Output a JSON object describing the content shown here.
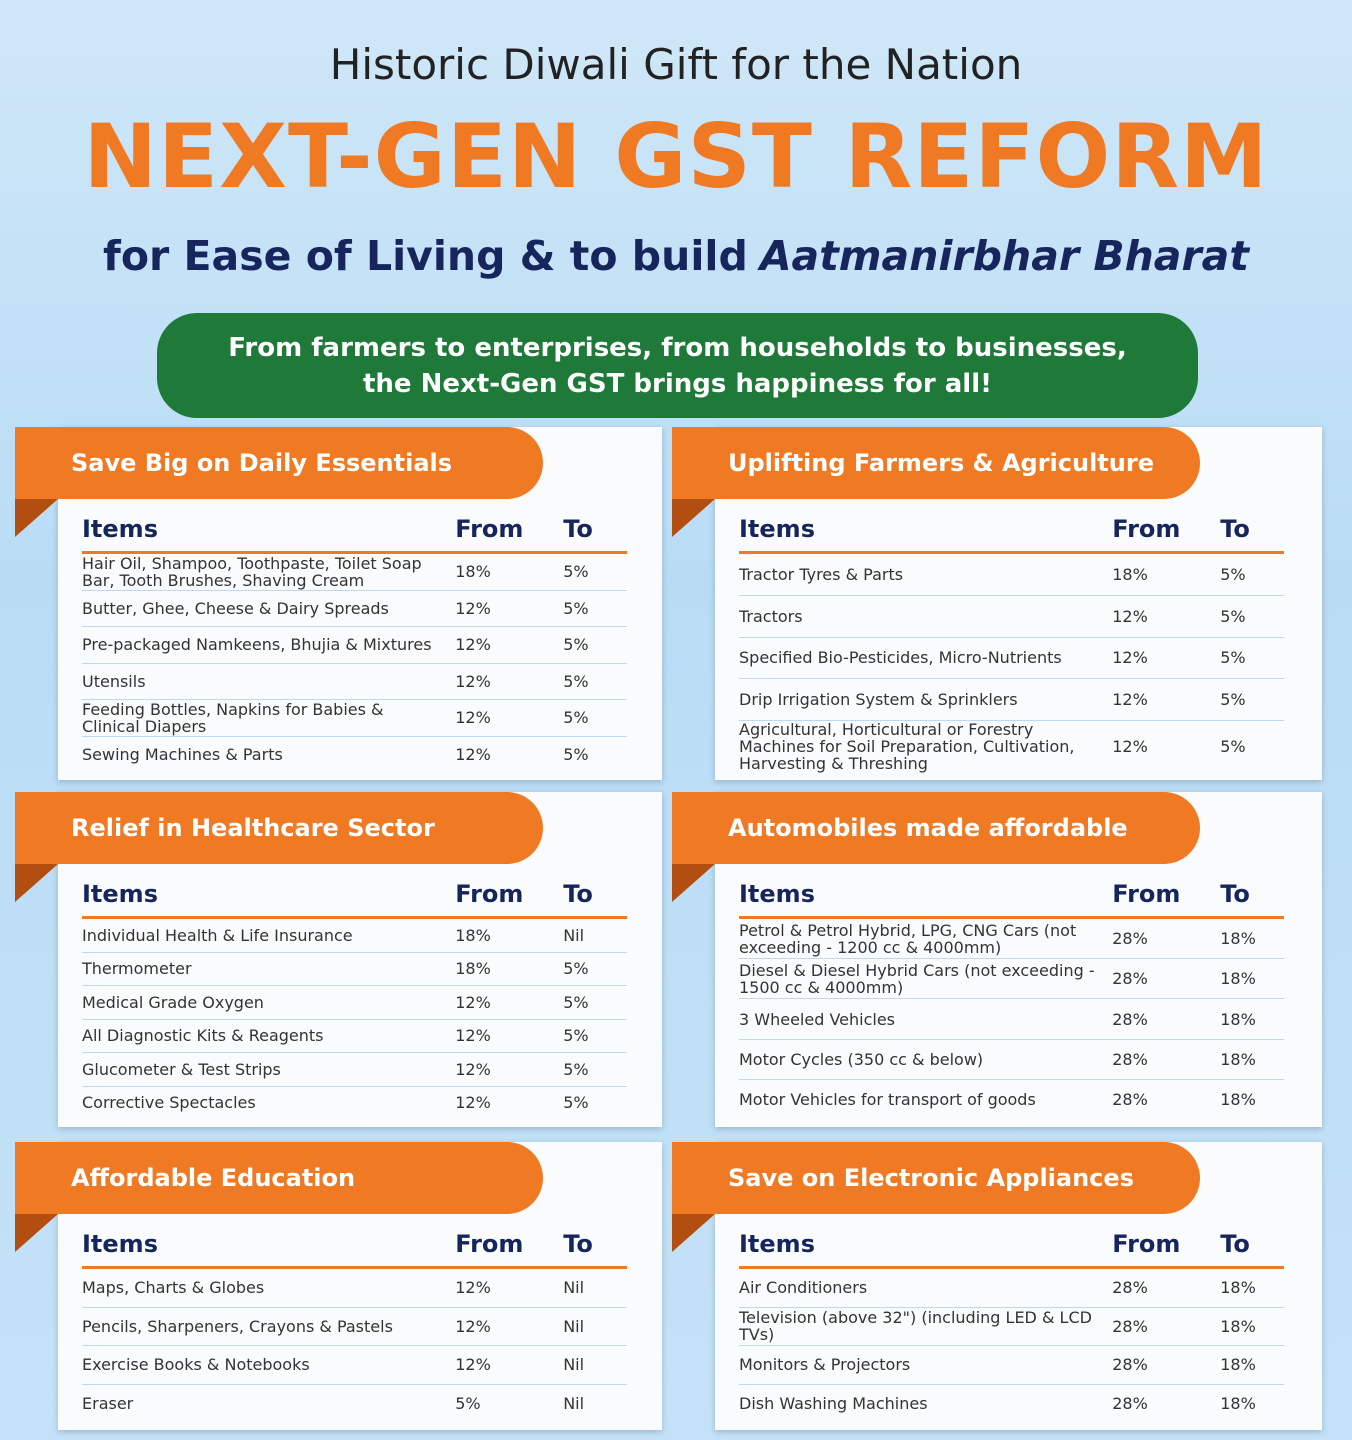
{
  "header": {
    "kicker": "Historic Diwali Gift for the Nation",
    "title": "NEXT-GEN GST REFORM",
    "subtitle": {
      "text": "for Ease of Living & to build",
      "emphasis": "Aatmanirbhar Bharat"
    }
  },
  "banner": {
    "lines": [
      "From farmers to enterprises, from households to businesses,",
      "the Next-Gen GST brings happiness for all!"
    ]
  },
  "sections": [
    {
      "title": "Save Big on Daily Essentials",
      "columns": [
        "Items",
        "From",
        "To"
      ],
      "rows": [
        [
          "Hair Oil, Shampoo, Toothpaste, Toilet Soap Bar, Tooth Brushes, Shaving Cream",
          "18%",
          "5%"
        ],
        [
          "Butter, Ghee, Cheese & Dairy Spreads",
          "12%",
          "5%"
        ],
        [
          "Pre-packaged Namkeens, Bhujia & Mixtures",
          "12%",
          "5%"
        ],
        [
          "Utensils",
          "12%",
          "5%"
        ],
        [
          "Feeding Bottles, Napkins for Babies & Clinical Diapers",
          "12%",
          "5%"
        ],
        [
          "Sewing Machines & Parts",
          "12%",
          "5%"
        ]
      ]
    },
    {
      "title": "Uplifting Farmers & Agriculture",
      "columns": [
        "Items",
        "From",
        "To"
      ],
      "rows": [
        [
          "Tractor Tyres & Parts",
          "18%",
          "5%"
        ],
        [
          "Tractors",
          "12%",
          "5%"
        ],
        [
          "Specified Bio-Pesticides, Micro-Nutrients",
          "12%",
          "5%"
        ],
        [
          "Drip Irrigation System & Sprinklers",
          "12%",
          "5%"
        ],
        [
          "Agricultural, Horticultural or Forestry Machines for Soil Preparation, Cultivation, Harvesting & Threshing",
          "12%",
          "5%"
        ]
      ]
    },
    {
      "title": "Relief in Healthcare Sector",
      "columns": [
        "Items",
        "From",
        "To"
      ],
      "rows": [
        [
          "Individual Health & Life Insurance",
          "18%",
          "Nil"
        ],
        [
          "Thermometer",
          "18%",
          "5%"
        ],
        [
          "Medical Grade Oxygen",
          "12%",
          "5%"
        ],
        [
          "All Diagnostic Kits & Reagents",
          "12%",
          "5%"
        ],
        [
          "Glucometer & Test Strips",
          "12%",
          "5%"
        ],
        [
          "Corrective Spectacles",
          "12%",
          "5%"
        ]
      ]
    },
    {
      "title": "Automobiles made affordable",
      "columns": [
        "Items",
        "From",
        "To"
      ],
      "rows": [
        [
          "Petrol & Petrol Hybrid, LPG, CNG Cars (not exceeding - 1200 cc & 4000mm)",
          "28%",
          "18%"
        ],
        [
          "Diesel & Diesel Hybrid Cars (not exceeding - 1500 cc & 4000mm)",
          "28%",
          "18%"
        ],
        [
          "3 Wheeled Vehicles",
          "28%",
          "18%"
        ],
        [
          "Motor Cycles (350 cc & below)",
          "28%",
          "18%"
        ],
        [
          "Motor Vehicles for transport of goods",
          "28%",
          "18%"
        ]
      ]
    },
    {
      "title": "Affordable Education",
      "columns": [
        "Items",
        "From",
        "To"
      ],
      "rows": [
        [
          "Maps, Charts & Globes",
          "12%",
          "Nil"
        ],
        [
          "Pencils, Sharpeners, Crayons & Pastels",
          "12%",
          "Nil"
        ],
        [
          "Exercise Books & Notebooks",
          "12%",
          "Nil"
        ],
        [
          "Eraser",
          "5%",
          "Nil"
        ]
      ]
    },
    {
      "title": "Save on Electronic Appliances",
      "columns": [
        "Items",
        "From",
        "To"
      ],
      "rows": [
        [
          "Air Conditioners",
          "28%",
          "18%"
        ],
        [
          "Television (above 32\") (including LED & LCD TVs)",
          "28%",
          "18%"
        ],
        [
          "Monitors & Projectors",
          "28%",
          "18%"
        ],
        [
          "Dish Washing Machines",
          "28%",
          "18%"
        ]
      ]
    }
  ]
}
